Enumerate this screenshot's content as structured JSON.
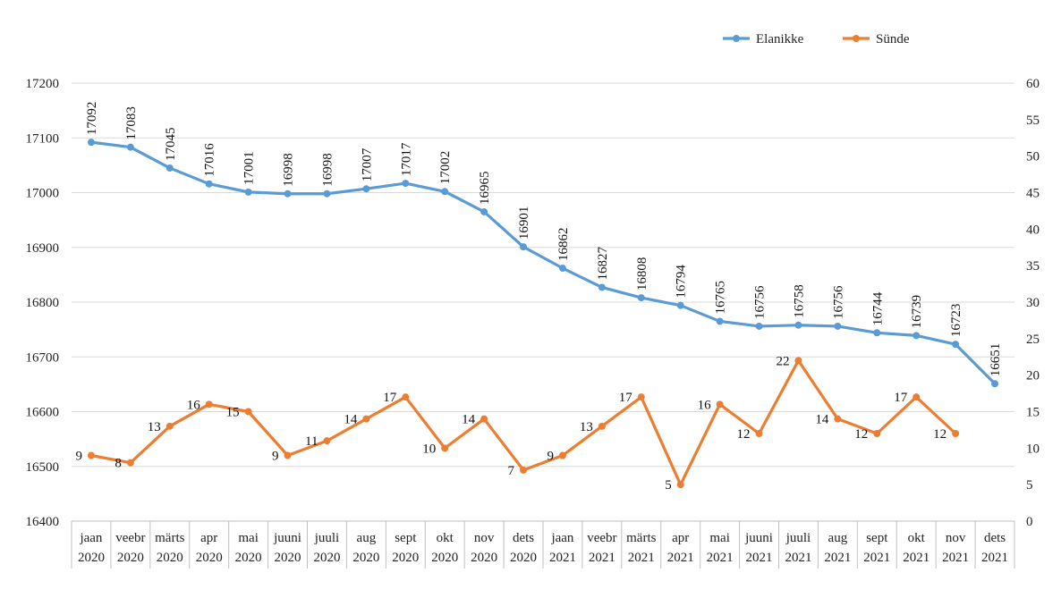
{
  "chart_data": {
    "type": "line",
    "categories": [
      [
        "jaan",
        "2020"
      ],
      [
        "veebr",
        "2020"
      ],
      [
        "märts",
        "2020"
      ],
      [
        "apr",
        "2020"
      ],
      [
        "mai",
        "2020"
      ],
      [
        "juuni",
        "2020"
      ],
      [
        "juuli",
        "2020"
      ],
      [
        "aug",
        "2020"
      ],
      [
        "sept",
        "2020"
      ],
      [
        "okt",
        "2020"
      ],
      [
        "nov",
        "2020"
      ],
      [
        "dets",
        "2020"
      ],
      [
        "jaan",
        "2021"
      ],
      [
        "veebr",
        "2021"
      ],
      [
        "märts",
        "2021"
      ],
      [
        "apr",
        "2021"
      ],
      [
        "mai",
        "2021"
      ],
      [
        "juuni",
        "2021"
      ],
      [
        "juuli",
        "2021"
      ],
      [
        "aug",
        "2021"
      ],
      [
        "sept",
        "2021"
      ],
      [
        "okt",
        "2021"
      ],
      [
        "nov",
        "2021"
      ],
      [
        "dets",
        "2021"
      ]
    ],
    "series": [
      {
        "name": "Elanikke",
        "axis": "left",
        "color": "#5b9bd5",
        "values": [
          17092,
          17083,
          17045,
          17016,
          17001,
          16998,
          16998,
          17007,
          17017,
          17002,
          16965,
          16901,
          16862,
          16827,
          16808,
          16794,
          16765,
          16756,
          16758,
          16756,
          16744,
          16739,
          16723,
          16651
        ]
      },
      {
        "name": "Sünde",
        "axis": "right",
        "color": "#ed7d31",
        "values": [
          9,
          8,
          13,
          16,
          15,
          9,
          11,
          14,
          17,
          10,
          14,
          7,
          9,
          13,
          17,
          5,
          16,
          12,
          22,
          14,
          12,
          17,
          12,
          null
        ]
      }
    ],
    "y_left": {
      "min": 16400,
      "max": 17200,
      "step": 100
    },
    "y_right": {
      "min": 0,
      "max": 60,
      "step": 5
    },
    "grid": true,
    "legend": "top-right"
  }
}
